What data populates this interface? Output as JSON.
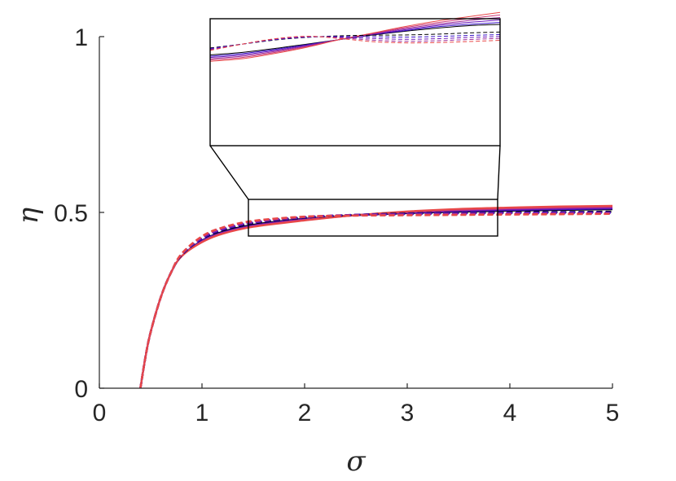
{
  "chart_data": {
    "type": "line",
    "title": "",
    "xlabel": "σ",
    "ylabel": "η",
    "xlim": [
      0,
      5
    ],
    "ylim": [
      0,
      1
    ],
    "xticks": [
      {
        "value": 0,
        "label": "0"
      },
      {
        "value": 1,
        "label": "1"
      },
      {
        "value": 2,
        "label": "2"
      },
      {
        "value": 3,
        "label": "3"
      },
      {
        "value": 4,
        "label": "4"
      },
      {
        "value": 5,
        "label": "5"
      }
    ],
    "yticks": [
      {
        "value": 0,
        "label": "0"
      },
      {
        "value": 0.5,
        "label": "0.5"
      },
      {
        "value": 1,
        "label": "1"
      }
    ],
    "grid": false,
    "legend": "none",
    "curve_x": [
      0.4,
      0.45,
      0.5,
      0.6,
      0.7,
      0.8,
      1.0,
      1.2,
      1.5,
      2.0,
      2.5,
      3.0,
      3.5,
      4.0,
      4.5,
      5.0
    ],
    "series": [
      {
        "style": "solid",
        "color": "#000000",
        "values": [
          0.0,
          0.09,
          0.16,
          0.26,
          0.33,
          0.375,
          0.42,
          0.445,
          0.465,
          0.482,
          0.492,
          0.498,
          0.502,
          0.505,
          0.507,
          0.509
        ]
      },
      {
        "style": "solid",
        "color": "#3a12c8",
        "values": [
          0.0,
          0.09,
          0.16,
          0.26,
          0.33,
          0.375,
          0.419,
          0.443,
          0.463,
          0.481,
          0.492,
          0.499,
          0.504,
          0.507,
          0.509,
          0.511
        ]
      },
      {
        "style": "solid",
        "color": "#6a16b8",
        "values": [
          0.0,
          0.09,
          0.16,
          0.26,
          0.33,
          0.375,
          0.418,
          0.442,
          0.462,
          0.48,
          0.492,
          0.5,
          0.505,
          0.509,
          0.511,
          0.513
        ]
      },
      {
        "style": "solid",
        "color": "#9c2a98",
        "values": [
          0.0,
          0.09,
          0.16,
          0.26,
          0.33,
          0.375,
          0.417,
          0.441,
          0.461,
          0.479,
          0.492,
          0.501,
          0.507,
          0.511,
          0.513,
          0.515
        ]
      },
      {
        "style": "solid",
        "color": "#cc3a78",
        "values": [
          0.0,
          0.09,
          0.16,
          0.26,
          0.33,
          0.375,
          0.416,
          0.44,
          0.46,
          0.478,
          0.492,
          0.502,
          0.508,
          0.512,
          0.515,
          0.517
        ]
      },
      {
        "style": "solid",
        "color": "#e84848",
        "values": [
          0.0,
          0.09,
          0.16,
          0.26,
          0.33,
          0.375,
          0.415,
          0.439,
          0.459,
          0.477,
          0.492,
          0.503,
          0.51,
          0.514,
          0.517,
          0.519
        ]
      },
      {
        "style": "dashed",
        "color": "#000000",
        "values": [
          0.0,
          0.09,
          0.16,
          0.26,
          0.33,
          0.378,
          0.425,
          0.449,
          0.469,
          0.485,
          0.493,
          0.497,
          0.499,
          0.5,
          0.501,
          0.502
        ]
      },
      {
        "style": "dashed",
        "color": "#3a12c8",
        "values": [
          0.0,
          0.09,
          0.16,
          0.26,
          0.33,
          0.379,
          0.426,
          0.451,
          0.471,
          0.486,
          0.493,
          0.496,
          0.498,
          0.499,
          0.5,
          0.5
        ]
      },
      {
        "style": "dashed",
        "color": "#6a16b8",
        "values": [
          0.0,
          0.09,
          0.16,
          0.26,
          0.33,
          0.38,
          0.428,
          0.453,
          0.472,
          0.487,
          0.493,
          0.495,
          0.497,
          0.498,
          0.498,
          0.499
        ]
      },
      {
        "style": "dashed",
        "color": "#9c2a98",
        "values": [
          0.0,
          0.09,
          0.16,
          0.26,
          0.33,
          0.381,
          0.43,
          0.455,
          0.474,
          0.487,
          0.492,
          0.494,
          0.495,
          0.496,
          0.497,
          0.497
        ]
      },
      {
        "style": "dashed",
        "color": "#e84848",
        "values": [
          0.0,
          0.09,
          0.16,
          0.26,
          0.33,
          0.382,
          0.432,
          0.457,
          0.476,
          0.488,
          0.491,
          0.492,
          0.493,
          0.494,
          0.495,
          0.496
        ]
      }
    ],
    "inset": {
      "source_xlim": [
        1.45,
        3.9
      ],
      "source_ylim": [
        0.43,
        0.54
      ],
      "series": [
        {
          "style": "solid",
          "color": "#000000",
          "values": [
            0.715,
            0.735,
            0.765,
            0.8,
            0.835,
            0.87,
            0.9,
            0.925,
            0.945,
            0.955
          ]
        },
        {
          "style": "solid",
          "color": "#3a12c8",
          "values": [
            0.705,
            0.725,
            0.758,
            0.795,
            0.835,
            0.873,
            0.905,
            0.935,
            0.955,
            0.97
          ]
        },
        {
          "style": "solid",
          "color": "#6a16b8",
          "values": [
            0.695,
            0.715,
            0.75,
            0.79,
            0.835,
            0.876,
            0.912,
            0.945,
            0.97,
            0.99
          ]
        },
        {
          "style": "solid",
          "color": "#9c2a98",
          "values": [
            0.685,
            0.705,
            0.742,
            0.785,
            0.835,
            0.879,
            0.92,
            0.955,
            0.985,
            1.01
          ]
        },
        {
          "style": "solid",
          "color": "#cc3a78",
          "values": [
            0.675,
            0.695,
            0.734,
            0.78,
            0.835,
            0.882,
            0.928,
            0.967,
            1.0,
            1.03
          ]
        },
        {
          "style": "solid",
          "color": "#e84848",
          "values": [
            0.665,
            0.685,
            0.726,
            0.775,
            0.835,
            0.885,
            0.936,
            0.98,
            1.015,
            1.05
          ]
        },
        {
          "style": "dashed",
          "color": "#000000",
          "values": [
            0.77,
            0.8,
            0.832,
            0.853,
            0.865,
            0.87,
            0.872,
            0.878,
            0.888,
            0.895
          ]
        },
        {
          "style": "dashed",
          "color": "#3a12c8",
          "values": [
            0.765,
            0.8,
            0.835,
            0.855,
            0.86,
            0.858,
            0.855,
            0.86,
            0.868,
            0.875
          ]
        },
        {
          "style": "dashed",
          "color": "#6a16b8",
          "values": [
            0.76,
            0.8,
            0.838,
            0.857,
            0.855,
            0.845,
            0.838,
            0.842,
            0.852,
            0.86
          ]
        },
        {
          "style": "dashed",
          "color": "#9c2a98",
          "values": [
            0.755,
            0.8,
            0.84,
            0.86,
            0.85,
            0.832,
            0.822,
            0.826,
            0.836,
            0.845
          ]
        },
        {
          "style": "dashed",
          "color": "#e84848",
          "values": [
            0.75,
            0.8,
            0.842,
            0.862,
            0.845,
            0.82,
            0.81,
            0.812,
            0.82,
            0.83
          ]
        }
      ]
    }
  }
}
